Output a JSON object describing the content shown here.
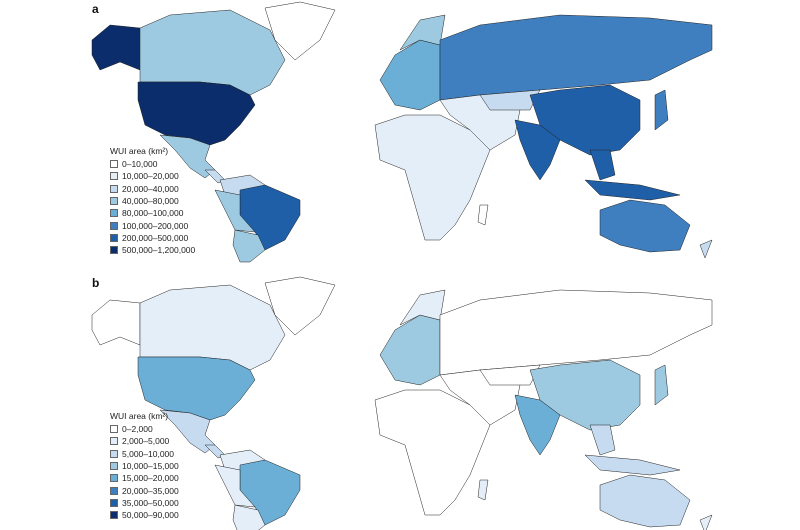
{
  "panels": [
    {
      "label": "a",
      "legend_title": "WUI area (km²)",
      "classes": [
        "0–10,000",
        "10,000–20,000",
        "20,000–40,000",
        "40,000–80,000",
        "80,000–100,000",
        "100,000–200,000",
        "200,000–500,000",
        "500,000–1,200,000"
      ]
    },
    {
      "label": "b",
      "legend_title": "WUI area (km²)",
      "classes": [
        "0–2,000",
        "2,000–5,000",
        "5,000–10,000",
        "10,000–15,000",
        "15,000–20,000",
        "20,000–35,000",
        "35,000–50,000",
        "50,000–90,000"
      ]
    }
  ],
  "palette": [
    "#ffffff",
    "#e4eef8",
    "#c6dbef",
    "#9ecae1",
    "#6baed6",
    "#3f7fbf",
    "#1f5fa8",
    "#0b2d6b"
  ]
}
